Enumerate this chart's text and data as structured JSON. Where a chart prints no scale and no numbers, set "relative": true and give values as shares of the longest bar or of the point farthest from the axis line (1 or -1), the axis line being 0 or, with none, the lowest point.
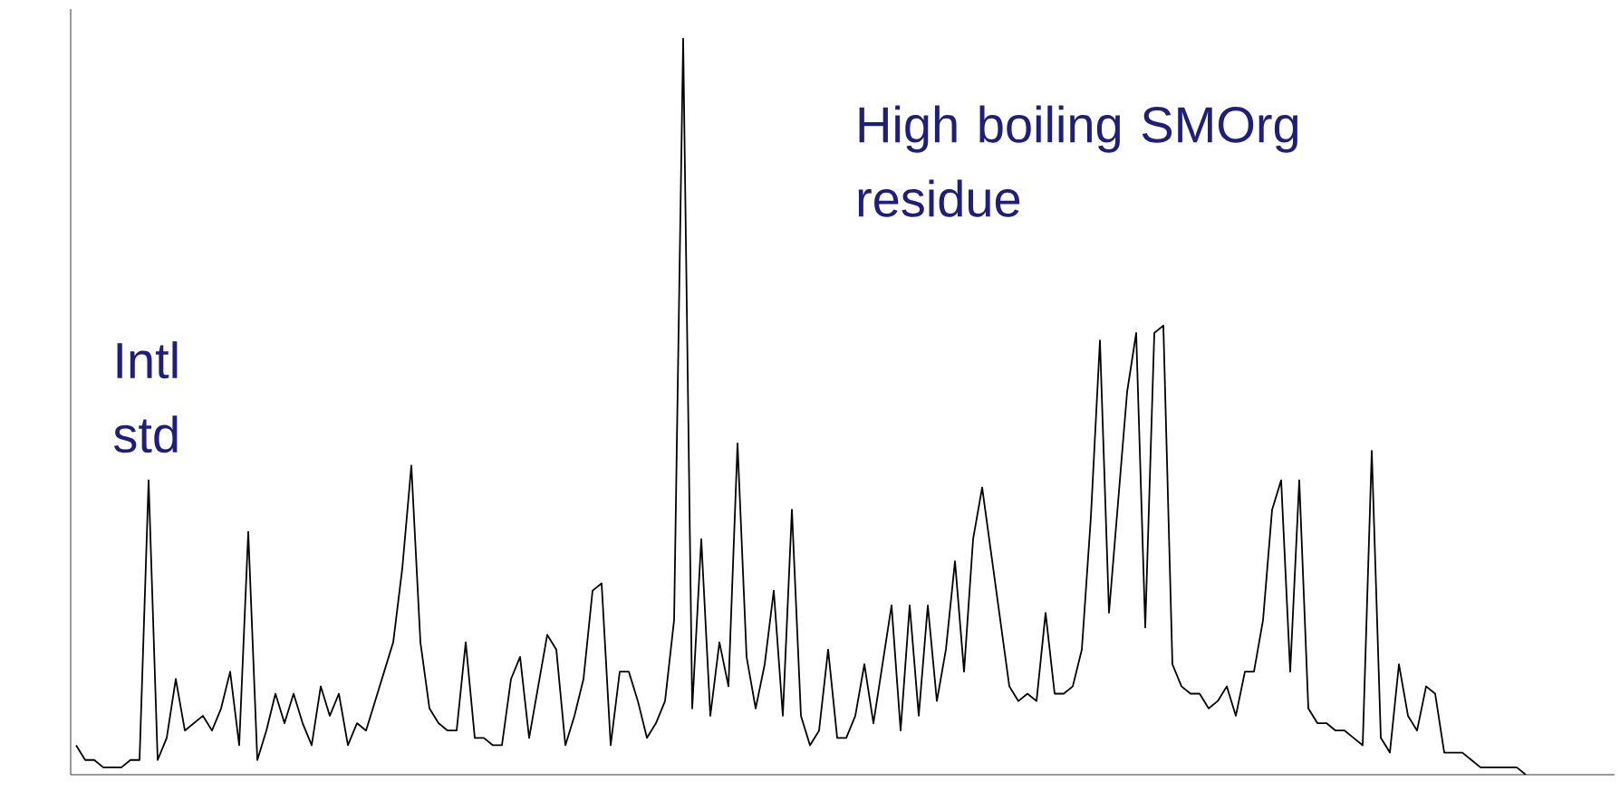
{
  "chart_data": {
    "type": "line",
    "relative": true,
    "categories": [
      null,
      null,
      null,
      null,
      null,
      null,
      null,
      null,
      null,
      null,
      null,
      null,
      null,
      null,
      null,
      null,
      null,
      null,
      null,
      null,
      null,
      null,
      null,
      null,
      null,
      null,
      null,
      null,
      null,
      null,
      null,
      null,
      null,
      null,
      null,
      null,
      null,
      null,
      null,
      null,
      null,
      null,
      null,
      null,
      null,
      null,
      null,
      null,
      null,
      null,
      null,
      null,
      null,
      null,
      null,
      null,
      null,
      null,
      null,
      null,
      null,
      null,
      null,
      null,
      null,
      null,
      null,
      null,
      null,
      null,
      null,
      null,
      null,
      null,
      null,
      null,
      null,
      null,
      null,
      null,
      null,
      null,
      null,
      null,
      null,
      null,
      null,
      null,
      null,
      null,
      null,
      null,
      null,
      null,
      null,
      null,
      null,
      null,
      null,
      null,
      null,
      null,
      null,
      null,
      null,
      null,
      null,
      null,
      null,
      null,
      null,
      null,
      null,
      null,
      null,
      null,
      null,
      null,
      null,
      null,
      null,
      null,
      null,
      null,
      null,
      null,
      null,
      null,
      null,
      null,
      null,
      null,
      null,
      null,
      null,
      null,
      null,
      null,
      null,
      null,
      null,
      null,
      null,
      null,
      null,
      null,
      null,
      null,
      null,
      null,
      null,
      null,
      null,
      null,
      null,
      null,
      null,
      null,
      null,
      null,
      null
    ],
    "series": [
      {
        "color": "#000000",
        "values": [
          0.04,
          0.02,
          0.02,
          0.01,
          0.01,
          0.01,
          0.02,
          0.02,
          0.4,
          0.02,
          0.05,
          0.13,
          0.06,
          0.07,
          0.08,
          0.06,
          0.09,
          0.14,
          0.04,
          0.33,
          0.02,
          0.06,
          0.11,
          0.07,
          0.11,
          0.07,
          0.04,
          0.12,
          0.08,
          0.11,
          0.04,
          0.07,
          0.06,
          0.1,
          0.14,
          0.18,
          0.28,
          0.42,
          0.18,
          0.09,
          0.07,
          0.06,
          0.06,
          0.18,
          0.05,
          0.05,
          0.04,
          0.04,
          0.13,
          0.16,
          0.05,
          0.12,
          0.19,
          0.17,
          0.04,
          0.08,
          0.13,
          0.25,
          0.26,
          0.04,
          0.14,
          0.14,
          0.1,
          0.05,
          0.07,
          0.1,
          0.21,
          1.0,
          0.09,
          0.32,
          0.08,
          0.18,
          0.12,
          0.45,
          0.16,
          0.09,
          0.15,
          0.25,
          0.08,
          0.36,
          0.08,
          0.04,
          0.06,
          0.17,
          0.05,
          0.05,
          0.08,
          0.15,
          0.07,
          0.15,
          0.23,
          0.06,
          0.23,
          0.08,
          0.23,
          0.1,
          0.17,
          0.29,
          0.14,
          0.32,
          0.39,
          0.3,
          0.21,
          0.12,
          0.1,
          0.11,
          0.1,
          0.22,
          0.11,
          0.11,
          0.12,
          0.17,
          0.35,
          0.59,
          0.22,
          0.37,
          0.52,
          0.6,
          0.2,
          0.6,
          0.61,
          0.15,
          0.12,
          0.11,
          0.11,
          0.09,
          0.1,
          0.12,
          0.08,
          0.14,
          0.14,
          0.21,
          0.36,
          0.4,
          0.14,
          0.4,
          0.09,
          0.07,
          0.07,
          0.06,
          0.06,
          0.05,
          0.04,
          0.44,
          0.05,
          0.03,
          0.15,
          0.08,
          0.06,
          0.12,
          0.11,
          0.03,
          0.03,
          0.03,
          0.02,
          0.01,
          0.01,
          0.01,
          0.01,
          0.01,
          0.0
        ]
      }
    ],
    "annotations": [
      "Intl std",
      "High boiling SMOrg residue"
    ]
  }
}
